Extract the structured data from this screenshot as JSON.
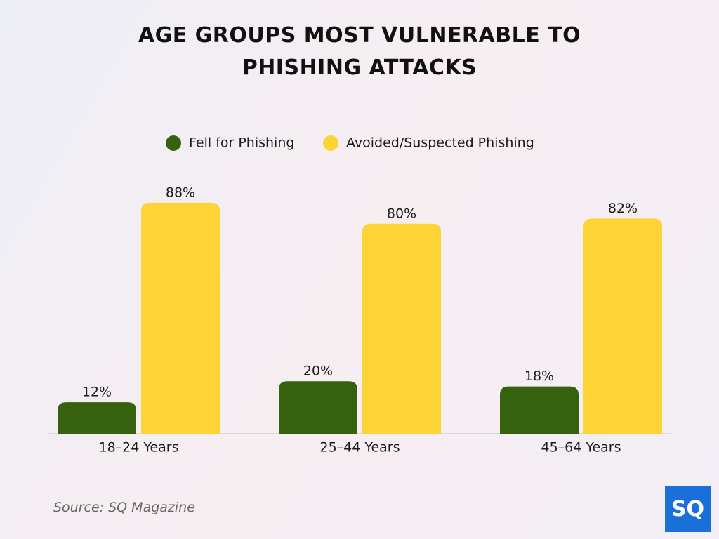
{
  "chart_data": {
    "type": "bar",
    "title": "AGE GROUPS MOST VULNERABLE TO PHISHING ATTACKS",
    "categories": [
      "18–24 Years",
      "25–44 Years",
      "45–64 Years"
    ],
    "series": [
      {
        "name": "Fell for Phishing",
        "color": "#36610f",
        "values": [
          12,
          20,
          18
        ],
        "value_labels": [
          "12%",
          "20%",
          "18%"
        ]
      },
      {
        "name": "Avoided/Suspected Phishing",
        "color": "#fdd335",
        "values": [
          88,
          80,
          82
        ],
        "value_labels": [
          "88%",
          "80%",
          "82%"
        ]
      }
    ],
    "ylim": [
      0,
      100
    ],
    "legend": "top",
    "source": "Source: SQ Magazine",
    "logo": "SQ"
  }
}
